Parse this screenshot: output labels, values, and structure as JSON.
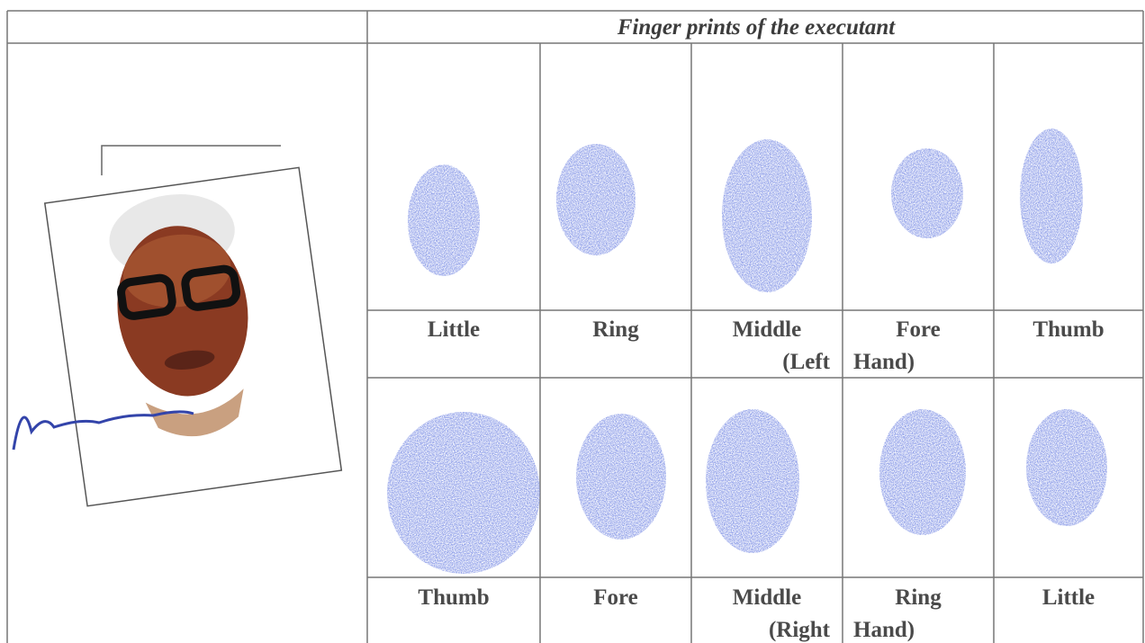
{
  "header": {
    "title": "Finger prints of the executant"
  },
  "rows": [
    {
      "labels": [
        [
          "Little"
        ],
        [
          "Ring"
        ],
        [
          "Middle",
          "(Left"
        ],
        [
          "Fore",
          "Hand)"
        ],
        [
          "Thumb"
        ]
      ]
    },
    {
      "labels": [
        [
          "Thumb"
        ],
        [
          "Fore"
        ],
        [
          "Middle",
          "(Right"
        ],
        [
          "Ring",
          "Hand)"
        ],
        [
          "Little"
        ]
      ]
    }
  ]
}
